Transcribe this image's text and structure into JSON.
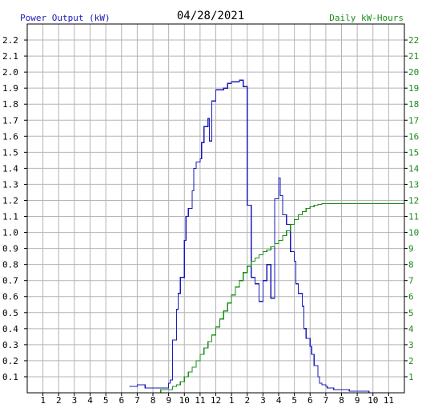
{
  "chart_data": {
    "type": "line",
    "title": "04/28/2021",
    "left_axis_label": "Power Output (kW)",
    "right_axis_label": "Daily kW-Hours",
    "x_ticks": [
      "1",
      "2",
      "3",
      "4",
      "5",
      "6",
      "7",
      "8",
      "9",
      "10",
      "11",
      "12",
      "1",
      "2",
      "3",
      "4",
      "5",
      "6",
      "7",
      "8",
      "9",
      "10",
      "11"
    ],
    "y_left_ticks": [
      "0.1",
      "0.2",
      "0.3",
      "0.4",
      "0.5",
      "0.6",
      "0.7",
      "0.8",
      "0.9",
      "1.0",
      "1.1",
      "1.2",
      "1.3",
      "1.4",
      "1.5",
      "1.6",
      "1.7",
      "1.8",
      "1.9",
      "2.0",
      "2.1",
      "2.2"
    ],
    "y_right_ticks": [
      "1",
      "2",
      "3",
      "4",
      "5",
      "6",
      "7",
      "8",
      "9",
      "10",
      "11",
      "12",
      "13",
      "14",
      "15",
      "16",
      "17",
      "18",
      "19",
      "20",
      "21",
      "22"
    ],
    "x_range_hours": [
      0,
      24
    ],
    "y_left_range": [
      0,
      2.3
    ],
    "y_right_range": [
      0,
      23
    ],
    "grid": true,
    "colors": {
      "power": "#1a1ab8",
      "energy": "#1a8c1a",
      "grid": "#b4b4b4",
      "axis": "#000000"
    },
    "series": [
      {
        "name": "Power Output (kW)",
        "axis": "left",
        "step": true,
        "x": [
          6.5,
          6.75,
          7.0,
          7.25,
          7.5,
          7.75,
          8.0,
          8.25,
          8.5,
          8.75,
          9.0,
          9.1,
          9.25,
          9.5,
          9.6,
          9.75,
          10.0,
          10.1,
          10.25,
          10.5,
          10.6,
          10.75,
          11.0,
          11.1,
          11.25,
          11.5,
          11.6,
          11.75,
          12.0,
          12.1,
          12.25,
          12.5,
          12.6,
          12.75,
          13.0,
          13.5,
          13.75,
          14.0,
          14.25,
          14.5,
          14.75,
          14.9,
          15.0,
          15.25,
          15.5,
          15.75,
          16.0,
          16.1,
          16.25,
          16.5,
          16.75,
          17.0,
          17.1,
          17.25,
          17.5,
          17.6,
          17.75,
          18.0,
          18.1,
          18.25,
          18.5,
          18.6,
          18.75,
          19.0,
          19.1,
          19.25,
          19.5,
          19.75,
          20.0,
          20.25,
          20.5,
          21.0,
          21.5,
          21.75
        ],
        "y": [
          0.04,
          0.04,
          0.05,
          0.05,
          0.03,
          0.03,
          0.03,
          0.03,
          0.03,
          0.03,
          0.06,
          0.08,
          0.33,
          0.52,
          0.62,
          0.72,
          0.95,
          1.1,
          1.15,
          1.26,
          1.4,
          1.44,
          1.46,
          1.56,
          1.66,
          1.71,
          1.57,
          1.82,
          1.89,
          1.89,
          1.89,
          1.9,
          1.9,
          1.93,
          1.94,
          1.95,
          1.91,
          1.17,
          0.72,
          0.68,
          0.57,
          0.57,
          0.7,
          0.8,
          0.59,
          1.21,
          1.34,
          1.23,
          1.11,
          1.05,
          0.88,
          0.82,
          0.68,
          0.62,
          0.54,
          0.4,
          0.34,
          0.29,
          0.24,
          0.17,
          0.1,
          0.06,
          0.05,
          0.04,
          0.03,
          0.03,
          0.02,
          0.02,
          0.02,
          0.02,
          0.01,
          0.01,
          0.01,
          0.0
        ]
      },
      {
        "name": "Daily kW-Hours",
        "axis": "right",
        "step": true,
        "x": [
          0,
          8.5,
          9.25,
          9.5,
          9.75,
          10.0,
          10.25,
          10.5,
          10.75,
          11.0,
          11.25,
          11.5,
          11.75,
          12.0,
          12.25,
          12.5,
          12.75,
          13.0,
          13.25,
          13.5,
          13.75,
          14.0,
          14.25,
          14.5,
          14.75,
          15.0,
          15.25,
          15.5,
          15.75,
          16.0,
          16.25,
          16.5,
          16.75,
          17.0,
          17.25,
          17.5,
          17.75,
          18.0,
          18.25,
          18.5,
          18.75,
          19.0,
          19.5,
          20.0,
          21.0,
          22.0,
          23.0,
          24.0
        ],
        "y": [
          0,
          0.2,
          0.4,
          0.5,
          0.7,
          1.0,
          1.3,
          1.6,
          2.0,
          2.4,
          2.8,
          3.2,
          3.6,
          4.1,
          4.6,
          5.1,
          5.6,
          6.1,
          6.6,
          7.0,
          7.5,
          7.9,
          8.2,
          8.4,
          8.6,
          8.8,
          8.9,
          9.1,
          9.3,
          9.5,
          9.8,
          10.1,
          10.5,
          10.8,
          11.1,
          11.3,
          11.5,
          11.6,
          11.7,
          11.75,
          11.8,
          11.8,
          11.8,
          11.8,
          11.8,
          11.8,
          11.8,
          11.8
        ]
      }
    ]
  }
}
